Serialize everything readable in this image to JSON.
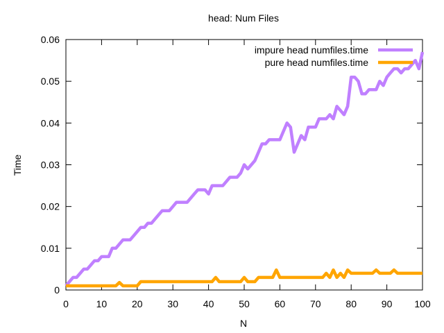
{
  "chart_data": {
    "type": "line",
    "title": "head: Num Files",
    "xlabel": "N",
    "ylabel": "Time",
    "xlim": [
      0,
      100
    ],
    "ylim": [
      0,
      0.06
    ],
    "xticks": [
      "0",
      "10",
      "20",
      "30",
      "40",
      "50",
      "60",
      "70",
      "80",
      "90",
      "100"
    ],
    "yticks": [
      "0",
      "0.01",
      "0.02",
      "0.03",
      "0.04",
      "0.05",
      "0.06"
    ],
    "xtick_values": [
      0,
      10,
      20,
      30,
      40,
      50,
      60,
      70,
      80,
      90,
      100
    ],
    "ytick_values": [
      0,
      0.01,
      0.02,
      0.03,
      0.04,
      0.05,
      0.06
    ],
    "grid": false,
    "legend_position": "top-right",
    "series": [
      {
        "name": "impure head numfiles.time",
        "color": "#c080ff",
        "points": [
          [
            0,
            0.001
          ],
          [
            1,
            0.002
          ],
          [
            2,
            0.003
          ],
          [
            3,
            0.003
          ],
          [
            4,
            0.004
          ],
          [
            5,
            0.005
          ],
          [
            6,
            0.005
          ],
          [
            7,
            0.006
          ],
          [
            8,
            0.007
          ],
          [
            9,
            0.007
          ],
          [
            10,
            0.008
          ],
          [
            11,
            0.008
          ],
          [
            12,
            0.008
          ],
          [
            13,
            0.01
          ],
          [
            14,
            0.01
          ],
          [
            15,
            0.011
          ],
          [
            16,
            0.012
          ],
          [
            17,
            0.012
          ],
          [
            18,
            0.012
          ],
          [
            19,
            0.013
          ],
          [
            20,
            0.014
          ],
          [
            21,
            0.015
          ],
          [
            22,
            0.015
          ],
          [
            23,
            0.016
          ],
          [
            24,
            0.016
          ],
          [
            25,
            0.017
          ],
          [
            26,
            0.018
          ],
          [
            27,
            0.019
          ],
          [
            28,
            0.019
          ],
          [
            29,
            0.019
          ],
          [
            30,
            0.02
          ],
          [
            31,
            0.021
          ],
          [
            32,
            0.021
          ],
          [
            33,
            0.021
          ],
          [
            34,
            0.021
          ],
          [
            35,
            0.022
          ],
          [
            36,
            0.023
          ],
          [
            37,
            0.024
          ],
          [
            38,
            0.024
          ],
          [
            39,
            0.024
          ],
          [
            40,
            0.023
          ],
          [
            41,
            0.025
          ],
          [
            42,
            0.025
          ],
          [
            43,
            0.025
          ],
          [
            44,
            0.025
          ],
          [
            45,
            0.026
          ],
          [
            46,
            0.027
          ],
          [
            47,
            0.027
          ],
          [
            48,
            0.027
          ],
          [
            49,
            0.028
          ],
          [
            50,
            0.03
          ],
          [
            51,
            0.029
          ],
          [
            52,
            0.03
          ],
          [
            53,
            0.031
          ],
          [
            54,
            0.033
          ],
          [
            55,
            0.035
          ],
          [
            56,
            0.035
          ],
          [
            57,
            0.036
          ],
          [
            58,
            0.036
          ],
          [
            59,
            0.036
          ],
          [
            60,
            0.036
          ],
          [
            61,
            0.038
          ],
          [
            62,
            0.04
          ],
          [
            63,
            0.039
          ],
          [
            64,
            0.033
          ],
          [
            65,
            0.035
          ],
          [
            66,
            0.037
          ],
          [
            67,
            0.036
          ],
          [
            68,
            0.039
          ],
          [
            69,
            0.039
          ],
          [
            70,
            0.039
          ],
          [
            71,
            0.041
          ],
          [
            72,
            0.041
          ],
          [
            73,
            0.041
          ],
          [
            74,
            0.042
          ],
          [
            75,
            0.041
          ],
          [
            76,
            0.044
          ],
          [
            77,
            0.043
          ],
          [
            78,
            0.042
          ],
          [
            79,
            0.044
          ],
          [
            80,
            0.051
          ],
          [
            81,
            0.051
          ],
          [
            82,
            0.05
          ],
          [
            83,
            0.047
          ],
          [
            84,
            0.047
          ],
          [
            85,
            0.048
          ],
          [
            86,
            0.048
          ],
          [
            87,
            0.048
          ],
          [
            88,
            0.05
          ],
          [
            89,
            0.049
          ],
          [
            90,
            0.051
          ],
          [
            91,
            0.052
          ],
          [
            92,
            0.053
          ],
          [
            93,
            0.053
          ],
          [
            94,
            0.052
          ],
          [
            95,
            0.053
          ],
          [
            96,
            0.053
          ],
          [
            97,
            0.054
          ],
          [
            98,
            0.055
          ],
          [
            99,
            0.053
          ],
          [
            100,
            0.057
          ]
        ]
      },
      {
        "name": "pure head numfiles.time",
        "color": "#ffa500",
        "points": [
          [
            0,
            0.001
          ],
          [
            1,
            0.001
          ],
          [
            10,
            0.001
          ],
          [
            14,
            0.001
          ],
          [
            15,
            0.0018
          ],
          [
            16,
            0.001
          ],
          [
            20,
            0.001
          ],
          [
            21,
            0.002
          ],
          [
            30,
            0.002
          ],
          [
            40,
            0.002
          ],
          [
            41,
            0.002
          ],
          [
            42,
            0.003
          ],
          [
            43,
            0.002
          ],
          [
            49,
            0.002
          ],
          [
            50,
            0.003
          ],
          [
            51,
            0.002
          ],
          [
            53,
            0.002
          ],
          [
            54,
            0.003
          ],
          [
            58,
            0.003
          ],
          [
            59,
            0.0048
          ],
          [
            60,
            0.003
          ],
          [
            70,
            0.003
          ],
          [
            72,
            0.003
          ],
          [
            73,
            0.004
          ],
          [
            74,
            0.003
          ],
          [
            75,
            0.0048
          ],
          [
            76,
            0.003
          ],
          [
            77,
            0.004
          ],
          [
            78,
            0.003
          ],
          [
            79,
            0.0048
          ],
          [
            80,
            0.004
          ],
          [
            86,
            0.004
          ],
          [
            87,
            0.0048
          ],
          [
            88,
            0.004
          ],
          [
            91,
            0.004
          ],
          [
            92,
            0.0048
          ],
          [
            93,
            0.004
          ],
          [
            100,
            0.004
          ]
        ]
      }
    ]
  }
}
